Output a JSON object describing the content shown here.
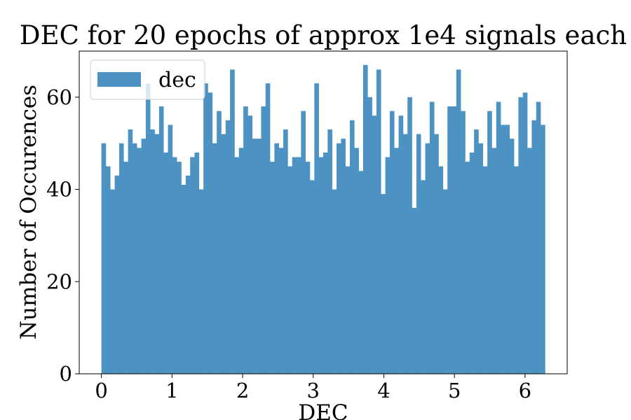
{
  "chart_data": {
    "type": "bar",
    "title": "DEC for 20 epochs of approx 1e4 signals each",
    "xlabel": "DEC",
    "ylabel": "Number of Occurences",
    "xlim": [
      -0.314,
      6.597
    ],
    "ylim": [
      0,
      70
    ],
    "xticks": [
      "0",
      "1",
      "2",
      "3",
      "4",
      "5",
      "6"
    ],
    "yticks": [
      "0",
      "20",
      "40",
      "60"
    ],
    "bin_range": [
      0,
      6.283
    ],
    "legend": {
      "position": "top-left",
      "label": "dec"
    },
    "series": [
      {
        "name": "dec",
        "color": "#4c93c3",
        "values": [
          50,
          45,
          40,
          43,
          50,
          46,
          53,
          50,
          49,
          51,
          63,
          53,
          52,
          58,
          48,
          54,
          47,
          46,
          41,
          43,
          47,
          48,
          40,
          63,
          61,
          50,
          57,
          52,
          55,
          66,
          47,
          49,
          58,
          56,
          51,
          51,
          58,
          63,
          46,
          50,
          49,
          53,
          45,
          47,
          47,
          57,
          46,
          42,
          63,
          47,
          48,
          53,
          40,
          50,
          51,
          45,
          55,
          49,
          44,
          67,
          60,
          56,
          66,
          39,
          47,
          57,
          49,
          56,
          52,
          60,
          36,
          52,
          42,
          50,
          59,
          52,
          45,
          40,
          58,
          58,
          66,
          57,
          46,
          48,
          53,
          50,
          45,
          57,
          49,
          59,
          54,
          54,
          51,
          45,
          60,
          61,
          49,
          55,
          59,
          54
        ]
      }
    ]
  }
}
